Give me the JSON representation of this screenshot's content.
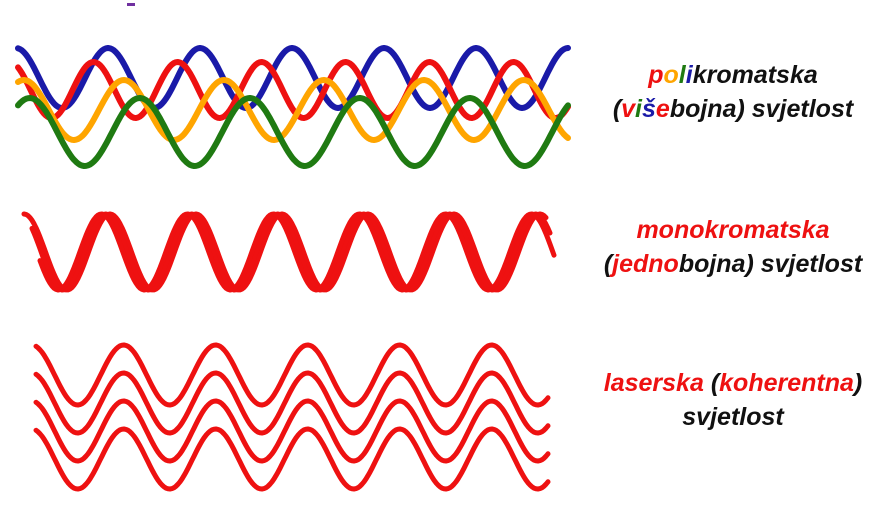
{
  "colors": {
    "blue": "#1a1aa8",
    "red": "#ee1111",
    "orange": "#ffa500",
    "green": "#1f7a12",
    "black": "#111111"
  },
  "polychromatic": {
    "caption_line1": [
      {
        "text": "p",
        "color": "red"
      },
      {
        "text": "o",
        "color": "orange"
      },
      {
        "text": "l",
        "color": "green"
      },
      {
        "text": "i",
        "color": "blue"
      },
      {
        "text": "kromatska",
        "color": "black"
      }
    ],
    "caption_line2": [
      {
        "text": "(",
        "color": "black"
      },
      {
        "text": "v",
        "color": "red"
      },
      {
        "text": "i",
        "color": "green"
      },
      {
        "text": "š",
        "color": "blue"
      },
      {
        "text": "e",
        "color": "red"
      },
      {
        "text": "bojna) svjetlost",
        "color": "black"
      }
    ],
    "wave_colors": [
      "blue",
      "red",
      "orange",
      "green"
    ]
  },
  "monochromatic": {
    "caption_line1": [
      {
        "text": "monokromatska",
        "color": "red"
      }
    ],
    "caption_line2": [
      {
        "text": "(",
        "color": "black"
      },
      {
        "text": "jedno",
        "color": "red"
      },
      {
        "text": "bojna) svjetlost",
        "color": "black"
      }
    ],
    "wave_color": "red"
  },
  "laser": {
    "caption_line1": [
      {
        "text": "laserska ",
        "color": "red"
      },
      {
        "text": "(",
        "color": "black"
      },
      {
        "text": "koherentna",
        "color": "red"
      },
      {
        "text": ")",
        "color": "black"
      }
    ],
    "caption_line2": [
      {
        "text": "svjetlost",
        "color": "black"
      }
    ],
    "wave_color": "red"
  }
}
